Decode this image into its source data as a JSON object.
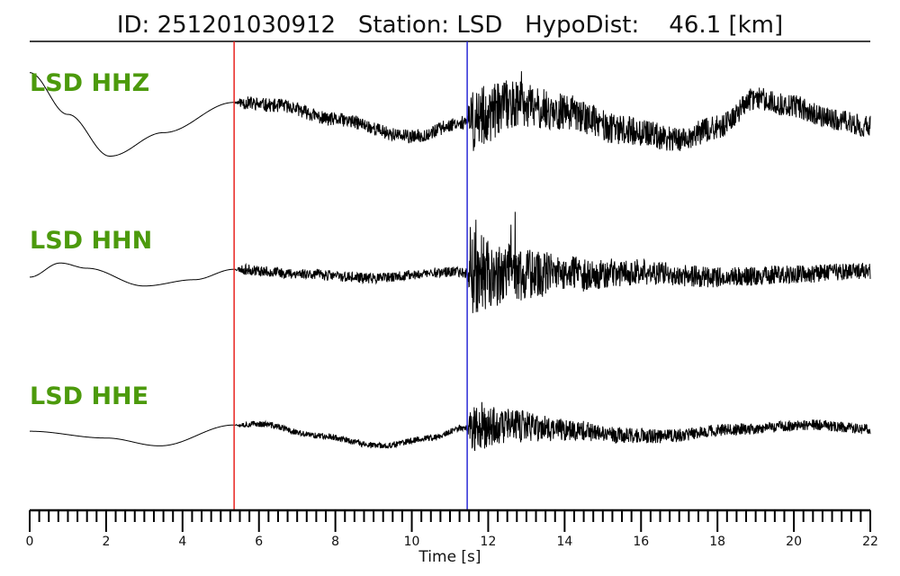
{
  "chart_data": {
    "type": "line",
    "title": "ID: 251201030912   Station: LSD   HypoDist:    46.1 [km]",
    "xlabel": "Time [s]",
    "xlim": [
      0,
      22
    ],
    "xticks": [
      0,
      2,
      4,
      6,
      8,
      10,
      12,
      14,
      16,
      18,
      20,
      22
    ],
    "minor_tick_step": 0.25,
    "grid": false,
    "label_color": "#4c9a0c",
    "trace_color": "#000000",
    "picks": [
      {
        "phase": "P",
        "time": 5.35,
        "color": "#e8231f"
      },
      {
        "phase": "S",
        "time": 11.45,
        "color": "#2a2ad6"
      }
    ],
    "series": [
      {
        "name": "LSD HHZ",
        "seed": 11,
        "p_noise": 0.13,
        "s_noise": 0.45,
        "envelope": [
          [
            0,
            0.85
          ],
          [
            1,
            0.05
          ],
          [
            2.1,
            -0.75
          ],
          [
            3.5,
            -0.3
          ],
          [
            5.35,
            0.28
          ],
          [
            6.5,
            0.22
          ],
          [
            8,
            -0.05
          ],
          [
            10,
            -0.38
          ],
          [
            11.4,
            -0.1
          ],
          [
            12,
            0.05
          ],
          [
            12.5,
            0.25
          ],
          [
            14,
            0.1
          ],
          [
            15.5,
            -0.25
          ],
          [
            17,
            -0.42
          ],
          [
            18,
            -0.2
          ],
          [
            19,
            0.35
          ],
          [
            20,
            0.2
          ],
          [
            21,
            -0.05
          ],
          [
            22,
            -0.18
          ]
        ]
      },
      {
        "name": "LSD HHN",
        "seed": 23,
        "p_noise": 0.1,
        "s_noise": 0.7,
        "envelope": [
          [
            0,
            -0.05
          ],
          [
            0.8,
            0.22
          ],
          [
            1.5,
            0.12
          ],
          [
            3,
            -0.22
          ],
          [
            4.3,
            -0.1
          ],
          [
            5.35,
            0.1
          ],
          [
            7,
            0.02
          ],
          [
            9,
            -0.07
          ],
          [
            11,
            0.05
          ],
          [
            12,
            0.02
          ],
          [
            14,
            0.0
          ],
          [
            16,
            0.04
          ],
          [
            18,
            -0.05
          ],
          [
            20,
            0.0
          ],
          [
            22,
            0.08
          ]
        ]
      },
      {
        "name": "LSD HHE",
        "seed": 37,
        "p_noise": 0.06,
        "s_noise": 0.4,
        "envelope": [
          [
            0,
            -0.02
          ],
          [
            2,
            -0.15
          ],
          [
            3.4,
            -0.3
          ],
          [
            5.35,
            0.1
          ],
          [
            6,
            0.12
          ],
          [
            7.5,
            -0.1
          ],
          [
            9.2,
            -0.3
          ],
          [
            10.5,
            -0.15
          ],
          [
            11.4,
            0.05
          ],
          [
            12.5,
            0.08
          ],
          [
            14,
            0.02
          ],
          [
            15.5,
            -0.1
          ],
          [
            16.5,
            -0.12
          ],
          [
            18.5,
            0.02
          ],
          [
            20.5,
            0.1
          ],
          [
            22,
            0.02
          ]
        ]
      }
    ]
  }
}
